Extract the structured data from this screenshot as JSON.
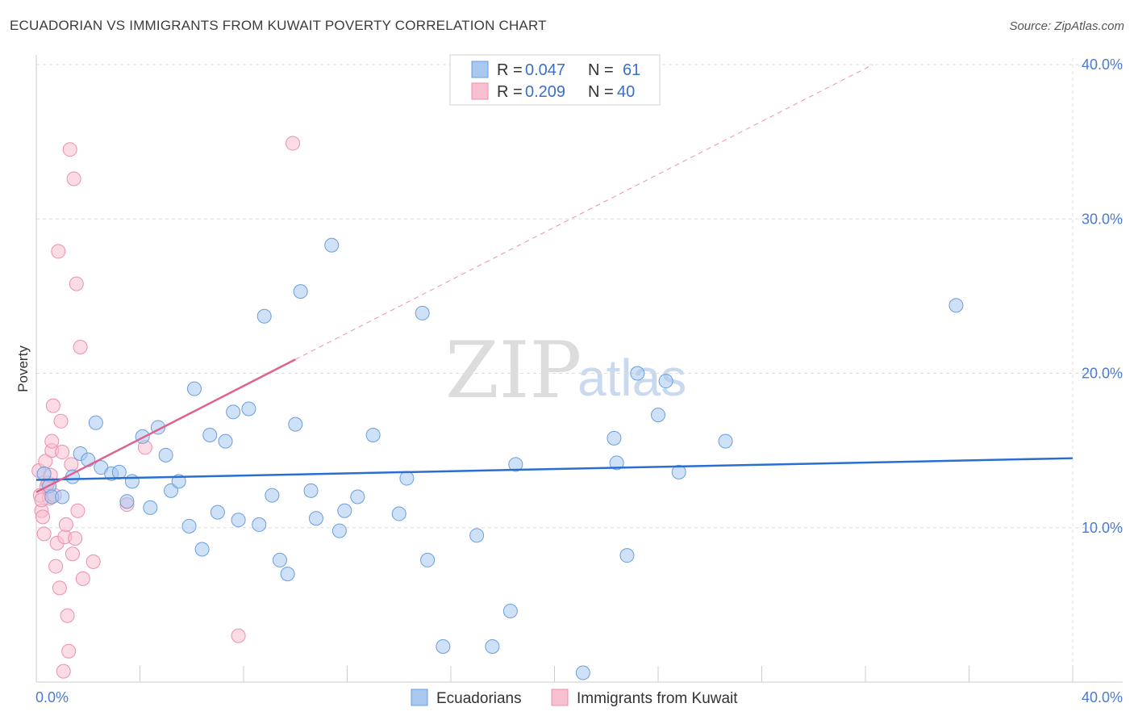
{
  "title": "ECUADORIAN VS IMMIGRANTS FROM KUWAIT POVERTY CORRELATION CHART",
  "source": "Source: ZipAtlas.com",
  "colors": {
    "blue_fill": "#a8c8f0",
    "blue_stroke": "#6a9ee0",
    "blue_line": "#2a6fd0",
    "pink_fill": "#f8bfd0",
    "pink_stroke": "#ec8fae",
    "pink_line": "#e0608e",
    "tick_text": "#4a7bd0",
    "grid": "#dddddd"
  },
  "legend": {
    "rows": [
      {
        "r_label": "R = ",
        "r_value": "0.047",
        "n_label": "N = ",
        "n_value": "61",
        "series": "blue"
      },
      {
        "r_label": "R = ",
        "r_value": "0.209",
        "n_label": "N = ",
        "n_value": "40",
        "series": "pink"
      }
    ]
  },
  "bottom_legend": [
    "Ecuadorians",
    "Immigrants from Kuwait"
  ],
  "watermark": {
    "zip": "ZIP",
    "atlas": "atlas"
  },
  "chart_data": {
    "type": "scatter",
    "title": "ECUADORIAN VS IMMIGRANTS FROM KUWAIT POVERTY CORRELATION CHART",
    "xlabel": "",
    "ylabel": "Poverty",
    "xlim": [
      0,
      40
    ],
    "ylim": [
      0,
      40
    ],
    "x_tick_labels": [
      "0.0%",
      "40.0%"
    ],
    "y_tick_values": [
      10,
      20,
      30,
      40
    ],
    "y_tick_labels": [
      "10.0%",
      "20.0%",
      "30.0%",
      "40.0%"
    ],
    "grid": true,
    "series": [
      {
        "name": "Ecuadorians",
        "color": "blue",
        "r": 0.047,
        "n": 61,
        "trend": {
          "x0": 0,
          "y0": 13.1,
          "x1": 40,
          "y1": 14.5,
          "dashed_to": null
        },
        "points": [
          [
            0.3,
            13.5
          ],
          [
            0.5,
            12.7
          ],
          [
            0.6,
            12.0
          ],
          [
            1.0,
            12.0
          ],
          [
            1.4,
            13.3
          ],
          [
            1.7,
            14.8
          ],
          [
            2.0,
            14.4
          ],
          [
            2.3,
            16.8
          ],
          [
            2.5,
            13.9
          ],
          [
            2.9,
            13.5
          ],
          [
            3.2,
            13.6
          ],
          [
            3.5,
            11.7
          ],
          [
            3.7,
            13.0
          ],
          [
            4.1,
            15.9
          ],
          [
            4.4,
            11.3
          ],
          [
            4.7,
            16.5
          ],
          [
            5.0,
            14.7
          ],
          [
            5.2,
            12.4
          ],
          [
            5.5,
            13.0
          ],
          [
            5.9,
            10.1
          ],
          [
            6.1,
            19.0
          ],
          [
            6.4,
            8.6
          ],
          [
            6.7,
            16.0
          ],
          [
            7.0,
            11.0
          ],
          [
            7.3,
            15.6
          ],
          [
            7.6,
            17.5
          ],
          [
            7.8,
            10.5
          ],
          [
            8.2,
            17.7
          ],
          [
            8.6,
            10.2
          ],
          [
            8.8,
            23.7
          ],
          [
            9.1,
            12.1
          ],
          [
            9.4,
            7.9
          ],
          [
            9.7,
            7.0
          ],
          [
            10.0,
            16.7
          ],
          [
            10.2,
            25.3
          ],
          [
            10.6,
            12.4
          ],
          [
            10.8,
            10.6
          ],
          [
            11.4,
            28.3
          ],
          [
            11.7,
            9.8
          ],
          [
            11.9,
            11.1
          ],
          [
            12.4,
            12.0
          ],
          [
            13.0,
            16.0
          ],
          [
            14.0,
            10.9
          ],
          [
            14.3,
            13.2
          ],
          [
            14.9,
            23.9
          ],
          [
            15.1,
            7.9
          ],
          [
            15.7,
            2.3
          ],
          [
            17.0,
            9.5
          ],
          [
            17.6,
            2.3
          ],
          [
            18.3,
            4.6
          ],
          [
            18.5,
            14.1
          ],
          [
            21.1,
            0.6
          ],
          [
            22.3,
            15.8
          ],
          [
            22.4,
            14.2
          ],
          [
            22.8,
            8.2
          ],
          [
            23.2,
            20.0
          ],
          [
            24.0,
            17.3
          ],
          [
            24.3,
            19.5
          ],
          [
            24.8,
            13.6
          ],
          [
            26.6,
            15.6
          ],
          [
            35.5,
            24.4
          ]
        ]
      },
      {
        "name": "Immigrants from Kuwait",
        "color": "pink",
        "r": 0.209,
        "n": 40,
        "trend": {
          "x0": 0,
          "y0": 12.3,
          "x1": 10,
          "y1": 20.9,
          "dashed_to": {
            "x": 40,
            "y": 46.6
          }
        },
        "points": [
          [
            0.1,
            13.7
          ],
          [
            0.15,
            12.1
          ],
          [
            0.2,
            11.1
          ],
          [
            0.25,
            10.7
          ],
          [
            0.3,
            9.6
          ],
          [
            0.35,
            14.3
          ],
          [
            0.4,
            12.7
          ],
          [
            0.45,
            12.9
          ],
          [
            0.5,
            11.9
          ],
          [
            0.55,
            13.4
          ],
          [
            0.6,
            15.0
          ],
          [
            0.6,
            15.6
          ],
          [
            0.65,
            17.9
          ],
          [
            0.7,
            12.1
          ],
          [
            0.75,
            7.5
          ],
          [
            0.8,
            9.0
          ],
          [
            0.85,
            27.9
          ],
          [
            0.9,
            6.1
          ],
          [
            0.95,
            16.9
          ],
          [
            1.0,
            14.9
          ],
          [
            1.05,
            0.7
          ],
          [
            1.1,
            9.4
          ],
          [
            1.15,
            10.2
          ],
          [
            1.2,
            4.3
          ],
          [
            1.25,
            2.0
          ],
          [
            1.3,
            34.5
          ],
          [
            1.35,
            14.1
          ],
          [
            1.4,
            8.3
          ],
          [
            1.45,
            32.6
          ],
          [
            1.5,
            9.3
          ],
          [
            1.55,
            25.8
          ],
          [
            1.6,
            11.1
          ],
          [
            1.7,
            21.7
          ],
          [
            1.8,
            6.7
          ],
          [
            2.2,
            7.8
          ],
          [
            3.5,
            11.5
          ],
          [
            4.2,
            15.2
          ],
          [
            7.8,
            3.0
          ],
          [
            9.9,
            34.9
          ],
          [
            0.2,
            11.8
          ]
        ]
      }
    ]
  }
}
